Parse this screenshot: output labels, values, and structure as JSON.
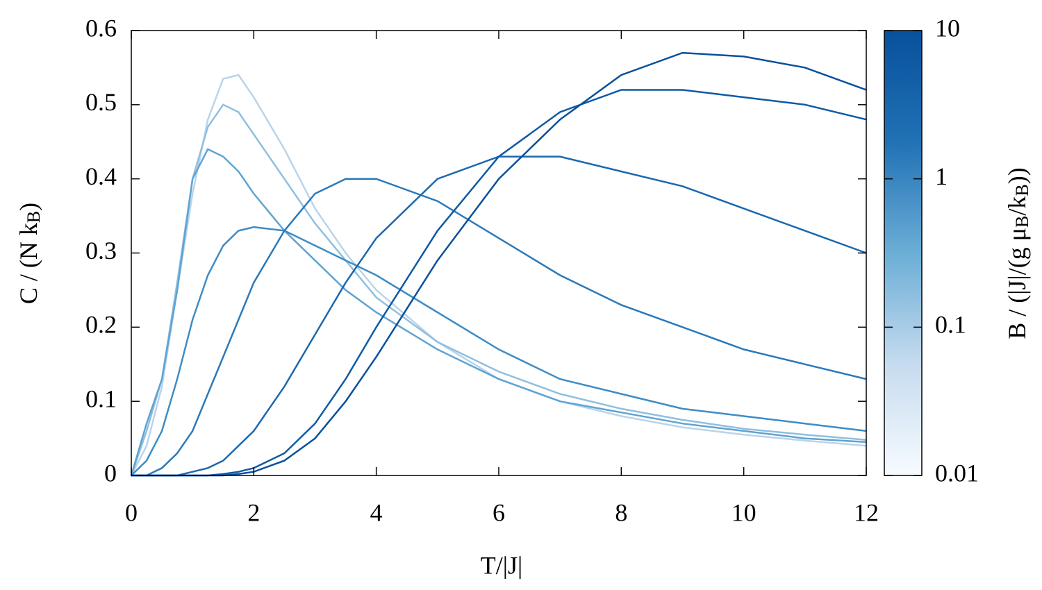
{
  "chart_data": {
    "type": "line",
    "xlabel": "T/|J|",
    "ylabel": [
      "C / (N k",
      "B",
      ")"
    ],
    "x": [
      0,
      0.25,
      0.5,
      0.75,
      1,
      1.25,
      1.5,
      1.75,
      2,
      2.5,
      3,
      3.5,
      4,
      5,
      6,
      7,
      8,
      9,
      10,
      11,
      12
    ],
    "series": [
      {
        "color": "#b9d4ea",
        "values": [
          0,
          0.04,
          0.12,
          0.25,
          0.38,
          0.48,
          0.535,
          0.54,
          0.51,
          0.44,
          0.36,
          0.3,
          0.25,
          0.18,
          0.13,
          0.1,
          0.08,
          0.065,
          0.055,
          0.047,
          0.04
        ]
      },
      {
        "color": "#8fbfdf",
        "values": [
          0,
          0.06,
          0.13,
          0.26,
          0.4,
          0.47,
          0.5,
          0.49,
          0.46,
          0.4,
          0.34,
          0.29,
          0.24,
          0.18,
          0.14,
          0.11,
          0.09,
          0.075,
          0.063,
          0.055,
          0.048
        ]
      },
      {
        "color": "#5fa3d2",
        "values": [
          0,
          0.07,
          0.13,
          0.25,
          0.4,
          0.44,
          0.43,
          0.41,
          0.38,
          0.33,
          0.29,
          0.25,
          0.22,
          0.17,
          0.13,
          0.1,
          0.085,
          0.07,
          0.06,
          0.05,
          0.045
        ]
      },
      {
        "color": "#3d8cc6",
        "values": [
          0,
          0.02,
          0.06,
          0.13,
          0.21,
          0.27,
          0.31,
          0.33,
          0.335,
          0.33,
          0.31,
          0.29,
          0.27,
          0.22,
          0.17,
          0.13,
          0.11,
          0.09,
          0.08,
          0.07,
          0.06
        ]
      },
      {
        "color": "#2b79ba",
        "values": [
          0,
          0,
          0.01,
          0.03,
          0.06,
          0.11,
          0.16,
          0.21,
          0.26,
          0.33,
          0.38,
          0.4,
          0.4,
          0.37,
          0.32,
          0.27,
          0.23,
          0.2,
          0.17,
          0.15,
          0.13
        ]
      },
      {
        "color": "#1c68ae",
        "values": [
          0,
          0,
          0,
          0,
          0.005,
          0.01,
          0.02,
          0.04,
          0.06,
          0.12,
          0.19,
          0.26,
          0.32,
          0.4,
          0.43,
          0.43,
          0.41,
          0.39,
          0.36,
          0.33,
          0.3
        ]
      },
      {
        "color": "#0f5aa3",
        "values": [
          0,
          0,
          0,
          0,
          0,
          0,
          0.002,
          0.005,
          0.01,
          0.03,
          0.07,
          0.13,
          0.2,
          0.33,
          0.43,
          0.49,
          0.52,
          0.52,
          0.51,
          0.5,
          0.48
        ]
      },
      {
        "color": "#08519c",
        "values": [
          0,
          0,
          0,
          0,
          0,
          0,
          0,
          0.002,
          0.005,
          0.02,
          0.05,
          0.1,
          0.16,
          0.29,
          0.4,
          0.48,
          0.54,
          0.57,
          0.565,
          0.55,
          0.52
        ]
      }
    ],
    "xlim": [
      0,
      12
    ],
    "xticks": [
      0,
      2,
      4,
      6,
      8,
      10,
      12
    ],
    "ylim": [
      0,
      0.6
    ],
    "yticks": [
      0,
      0.1,
      0.2,
      0.3,
      0.4,
      0.5,
      0.6
    ],
    "colorbar": {
      "label": [
        "B / (|J|/(g μ",
        "B",
        "/k",
        "B",
        "))"
      ],
      "log": true,
      "lim": [
        0.01,
        10
      ],
      "ticks": [
        0.01,
        0.1,
        1,
        10
      ],
      "colors": [
        "#f7fbff",
        "#c6dbef",
        "#6baed6",
        "#2171b5",
        "#08519c"
      ]
    }
  }
}
